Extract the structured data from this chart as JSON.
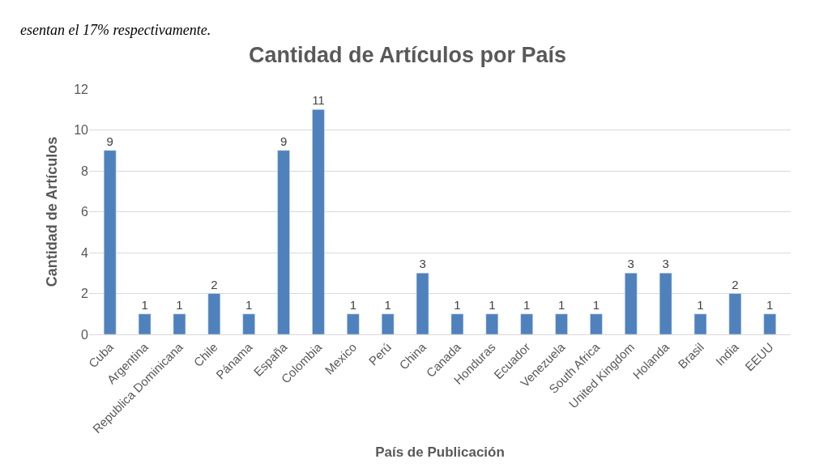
{
  "chart_data": {
    "type": "bar",
    "title": "Cantidad de Artículos por País",
    "xlabel": "País de Publicación",
    "ylabel": "Cantidad de Artículos",
    "annotations": [
      "esentan el 17% respectivamente."
    ],
    "categories": [
      "Cuba",
      "Argentina",
      "Republica Dominicana",
      "Chile",
      "Pánama",
      "España",
      "Colombia",
      "Mexico",
      "Perú",
      "China",
      "Canada",
      "Honduras",
      "Ecuador",
      "Venezuela",
      "South Africa",
      "United Kingdom",
      "Holanda",
      "Brasil",
      "India",
      "EEUU"
    ],
    "values": [
      9,
      1,
      1,
      2,
      1,
      9,
      11,
      1,
      1,
      3,
      1,
      1,
      1,
      1,
      1,
      3,
      3,
      1,
      2,
      1
    ],
    "color": "#4f81bd",
    "ylim": [
      0,
      12
    ],
    "yticks": [
      0,
      2,
      4,
      6,
      8,
      10,
      12
    ],
    "grid": "y",
    "data_labels": true,
    "legend": false
  }
}
